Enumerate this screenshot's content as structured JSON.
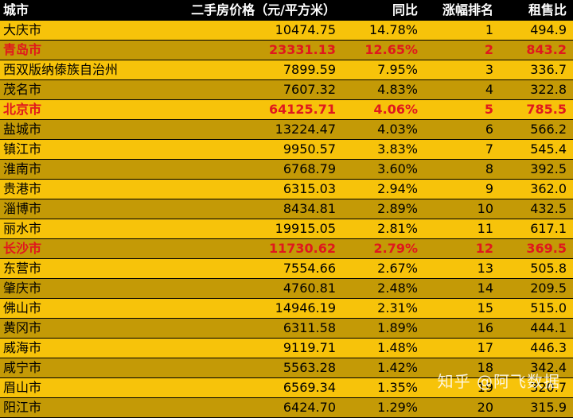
{
  "columns": [
    "城市",
    "二手房价格（元/平方米）",
    "同比",
    "涨幅排名",
    "租售比"
  ],
  "rows": [
    {
      "city": "大庆市",
      "price": "10474.75",
      "yoy": "14.78%",
      "rank": "1",
      "ratio": "494.9"
    },
    {
      "city": "青岛市",
      "price": "23331.13",
      "yoy": "12.65%",
      "rank": "2",
      "ratio": "843.2",
      "highlight": true
    },
    {
      "city": "西双版纳傣族自治州",
      "price": "7899.59",
      "yoy": "7.95%",
      "rank": "3",
      "ratio": "336.7"
    },
    {
      "city": "茂名市",
      "price": "7607.32",
      "yoy": "4.83%",
      "rank": "4",
      "ratio": "322.8"
    },
    {
      "city": "北京市",
      "price": "64125.71",
      "yoy": "4.06%",
      "rank": "5",
      "ratio": "785.5",
      "highlight": true
    },
    {
      "city": "盐城市",
      "price": "13224.47",
      "yoy": "4.03%",
      "rank": "6",
      "ratio": "566.2"
    },
    {
      "city": "镇江市",
      "price": "9950.57",
      "yoy": "3.83%",
      "rank": "7",
      "ratio": "545.4"
    },
    {
      "city": "淮南市",
      "price": "6768.79",
      "yoy": "3.60%",
      "rank": "8",
      "ratio": "392.5"
    },
    {
      "city": "贵港市",
      "price": "6315.03",
      "yoy": "2.94%",
      "rank": "9",
      "ratio": "362.0"
    },
    {
      "city": "淄博市",
      "price": "8434.81",
      "yoy": "2.89%",
      "rank": "10",
      "ratio": "432.5"
    },
    {
      "city": "丽水市",
      "price": "19915.05",
      "yoy": "2.81%",
      "rank": "11",
      "ratio": "617.1"
    },
    {
      "city": "长沙市",
      "price": "11730.62",
      "yoy": "2.79%",
      "rank": "12",
      "ratio": "369.5",
      "highlight": true
    },
    {
      "city": "东营市",
      "price": "7554.66",
      "yoy": "2.67%",
      "rank": "13",
      "ratio": "505.8"
    },
    {
      "city": "肇庆市",
      "price": "4760.81",
      "yoy": "2.48%",
      "rank": "14",
      "ratio": "209.5"
    },
    {
      "city": "佛山市",
      "price": "14946.19",
      "yoy": "2.31%",
      "rank": "15",
      "ratio": "515.0"
    },
    {
      "city": "黄冈市",
      "price": "6311.58",
      "yoy": "1.89%",
      "rank": "16",
      "ratio": "444.1"
    },
    {
      "city": "威海市",
      "price": "9119.71",
      "yoy": "1.48%",
      "rank": "17",
      "ratio": "446.3"
    },
    {
      "city": "咸宁市",
      "price": "5563.28",
      "yoy": "1.42%",
      "rank": "18",
      "ratio": "342.4"
    },
    {
      "city": "眉山市",
      "price": "6569.34",
      "yoy": "1.35%",
      "rank": "19",
      "ratio": "320.7"
    },
    {
      "city": "阳江市",
      "price": "6424.70",
      "yoy": "1.29%",
      "rank": "20",
      "ratio": "315.9"
    }
  ],
  "watermark": "知乎 @阿飞数据",
  "colors": {
    "header_bg": "#000000",
    "header_text": "#FFFFFF",
    "row_light": "#F7C30A",
    "row_dark": "#C49A06",
    "highlight_text": "#E0181E"
  }
}
